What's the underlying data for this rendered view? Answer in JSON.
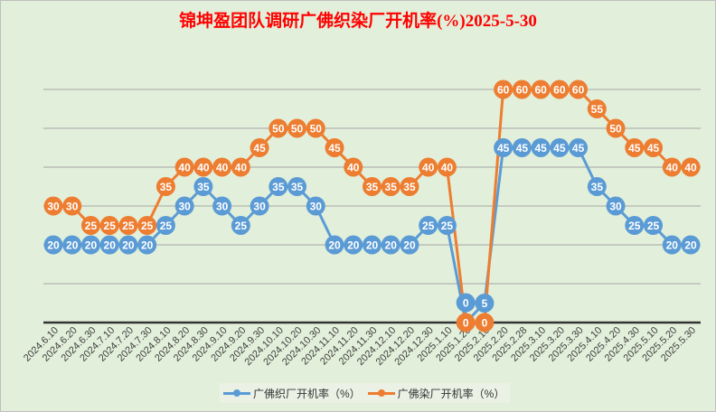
{
  "chart_data": {
    "type": "line",
    "title": "锦坤盈团队调研广佛织染厂开机率(%)2025-5-30",
    "xlabel": "",
    "ylabel": "",
    "ylim": [
      0,
      60
    ],
    "grid": true,
    "legend_position": "bottom",
    "categories": [
      "2024.6.10",
      "2024.6.20",
      "2024.6.30",
      "2024.7.10",
      "2024.7.20",
      "2024.7.30",
      "2024.8.10",
      "2024.8.20",
      "2024.8.30",
      "2024.9.10",
      "2024.9.20",
      "2024.9.30",
      "2024.10.10",
      "2024.10.20",
      "2024.10.30",
      "2024.11.10",
      "2024.11.20",
      "2024.11.30",
      "2024.12.10",
      "2024.12.20",
      "2024.12.30",
      "2025.1.10",
      "2025.1.20",
      "2025.2.10",
      "2025.2.20",
      "2025.2.28",
      "2025.3.10",
      "2025.3.20",
      "2025.3.30",
      "2025.4.10",
      "2025.4.20",
      "2025.4.30",
      "2025.5.10",
      "2025.5.20",
      "2025.5.30"
    ],
    "series": [
      {
        "name": "广佛织厂开机率（%）",
        "color": "#5b9bd5",
        "values": [
          20,
          20,
          20,
          20,
          20,
          20,
          25,
          30,
          35,
          30,
          25,
          30,
          35,
          35,
          30,
          20,
          20,
          20,
          20,
          20,
          25,
          25,
          0,
          5,
          45,
          45,
          45,
          45,
          45,
          35,
          30,
          25,
          25,
          20,
          20
        ]
      },
      {
        "name": "广佛染厂开机率（%）",
        "color": "#ed7d31",
        "values": [
          30,
          30,
          25,
          25,
          25,
          25,
          35,
          40,
          40,
          40,
          40,
          45,
          50,
          50,
          50,
          45,
          40,
          35,
          35,
          35,
          40,
          40,
          0,
          0,
          60,
          60,
          60,
          60,
          60,
          55,
          50,
          45,
          45,
          40,
          40
        ]
      }
    ]
  }
}
